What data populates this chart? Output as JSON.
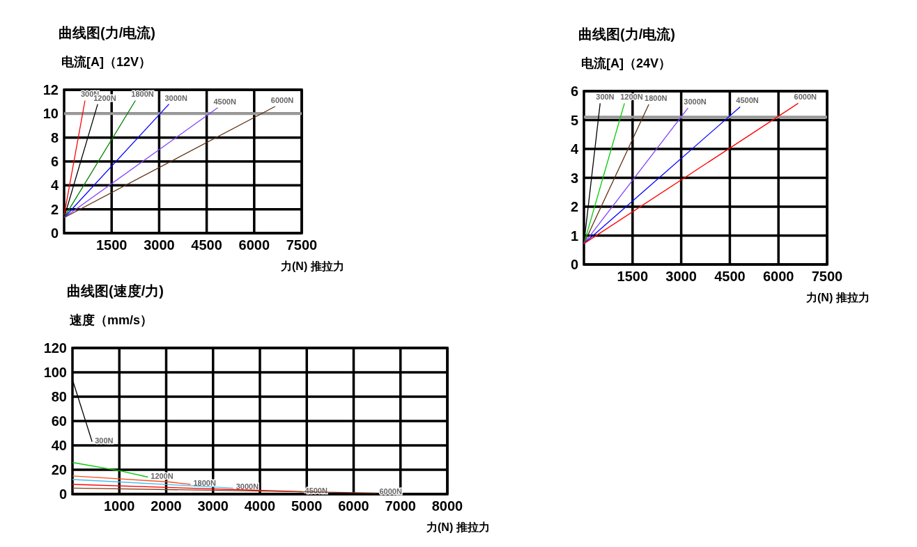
{
  "chart_data": [
    {
      "type": "line",
      "title": "曲线图(力/电流)",
      "ylabel": "电流[A]（12V）",
      "xlabel": "力(N) 推拉力",
      "xlim": [
        0,
        7500
      ],
      "ylim": [
        0,
        12
      ],
      "xticks": [
        1500,
        3000,
        4500,
        6000,
        7500
      ],
      "yticks": [
        0,
        2,
        4,
        6,
        8,
        10,
        12
      ],
      "grid": true,
      "ref_lines": [
        {
          "axis": "y",
          "value": 10,
          "color": "#999999"
        }
      ],
      "series": [
        {
          "name": "300N",
          "color": "#ff0000",
          "x": [
            0,
            660
          ],
          "values": [
            1.5,
            11.1
          ]
        },
        {
          "name": "1200N",
          "color": "#000000",
          "x": [
            0,
            1060
          ],
          "values": [
            1.3,
            10.8
          ]
        },
        {
          "name": "1800N",
          "color": "#008000",
          "x": [
            0,
            2250
          ],
          "values": [
            1.3,
            11.1
          ]
        },
        {
          "name": "3000N",
          "color": "#0000ff",
          "x": [
            0,
            3310
          ],
          "values": [
            1.3,
            10.8
          ]
        },
        {
          "name": "4500N",
          "color": "#8040ff",
          "x": [
            0,
            4850
          ],
          "values": [
            1.3,
            10.5
          ]
        },
        {
          "name": "6000N",
          "color": "#603010",
          "x": [
            0,
            6660
          ],
          "values": [
            1.3,
            10.6
          ]
        }
      ]
    },
    {
      "type": "line",
      "title": "曲线图(力/电流)",
      "ylabel": "电流[A]（24V）",
      "xlabel": "力(N) 推拉力",
      "xlim": [
        0,
        7500
      ],
      "ylim": [
        0,
        6
      ],
      "xticks": [
        1500,
        3000,
        4500,
        6000,
        7500
      ],
      "yticks": [
        0,
        1,
        2,
        3,
        4,
        5,
        6
      ],
      "grid": true,
      "ref_lines": [
        {
          "axis": "y",
          "value": 5.1,
          "color": "#999999"
        }
      ],
      "series": [
        {
          "name": "300N",
          "color": "#000000",
          "x": [
            0,
            500
          ],
          "values": [
            0.72,
            5.58
          ]
        },
        {
          "name": "1200N",
          "color": "#00cc00",
          "x": [
            0,
            1250
          ],
          "values": [
            0.72,
            5.58
          ]
        },
        {
          "name": "1800N",
          "color": "#603010",
          "x": [
            0,
            2000
          ],
          "values": [
            0.72,
            5.54
          ]
        },
        {
          "name": "3000N",
          "color": "#8040ff",
          "x": [
            0,
            3210
          ],
          "values": [
            0.72,
            5.42
          ]
        },
        {
          "name": "4500N",
          "color": "#0000ff",
          "x": [
            0,
            4820
          ],
          "values": [
            0.72,
            5.46
          ]
        },
        {
          "name": "6000N",
          "color": "#ff0000",
          "x": [
            0,
            6610
          ],
          "values": [
            0.72,
            5.58
          ]
        }
      ]
    },
    {
      "type": "line",
      "title": "曲线图(速度/力)",
      "ylabel": "速度（mm/s）",
      "xlabel": "力(N) 推拉力",
      "xlim": [
        0,
        8000
      ],
      "ylim": [
        0,
        120
      ],
      "xticks": [
        1000,
        2000,
        3000,
        4000,
        5000,
        6000,
        7000,
        8000
      ],
      "yticks": [
        0,
        20,
        40,
        60,
        80,
        100,
        120
      ],
      "grid": true,
      "series": [
        {
          "name": "300N",
          "color": "#000000",
          "x": [
            0,
            420
          ],
          "values": [
            94,
            43
          ]
        },
        {
          "name": "1200N",
          "color": "#00cc00",
          "x": [
            0,
            1040,
            1610
          ],
          "values": [
            26,
            19,
            14
          ]
        },
        {
          "name": "1800N",
          "color": "#ff5020",
          "x": [
            0,
            2060,
            2520
          ],
          "values": [
            15,
            10,
            8
          ]
        },
        {
          "name": "3000N",
          "color": "#40c0f0",
          "x": [
            0,
            1000,
            3430
          ],
          "values": [
            12,
            10,
            5
          ]
        },
        {
          "name": "4500N",
          "color": "#ff0000",
          "x": [
            0,
            4900
          ],
          "values": [
            8,
            2
          ]
        },
        {
          "name": "6000N",
          "color": "#804020",
          "x": [
            0,
            6490
          ],
          "values": [
            5,
            1
          ]
        }
      ]
    }
  ]
}
